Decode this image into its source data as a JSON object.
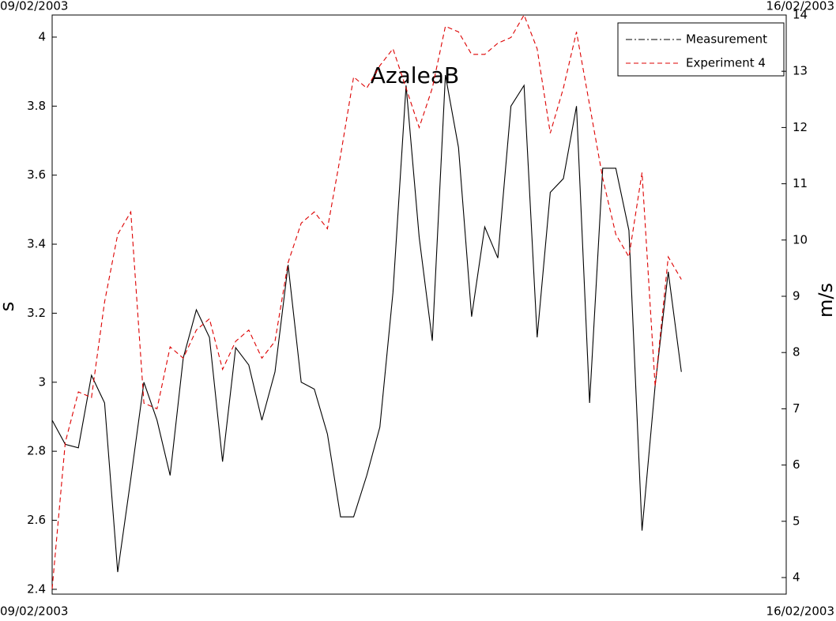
{
  "chart_data": {
    "type": "line",
    "title": "AzaleaB",
    "ylabel": "s",
    "y2label": "m/s",
    "x": [
      0,
      3,
      6,
      9,
      12,
      15,
      18,
      21,
      24,
      27,
      30,
      33,
      36,
      39,
      42,
      45,
      48,
      51,
      54,
      57,
      60,
      63,
      66,
      69,
      72,
      75,
      78,
      81,
      84,
      87,
      90,
      93,
      96,
      99,
      102,
      105,
      108,
      111,
      114,
      117,
      120,
      123,
      126,
      129,
      132,
      135,
      138,
      141,
      144
    ],
    "xlim": [
      0,
      168
    ],
    "xticks": [
      {
        "value": 0,
        "label": "09/02/2003"
      },
      {
        "value": 168,
        "label": "16/02/2003"
      }
    ],
    "ylim": [
      2.386,
      4.064
    ],
    "yticks": [
      2.4,
      2.6,
      2.8,
      3,
      3.2,
      3.4,
      3.6,
      3.8,
      4
    ],
    "y2lim": [
      3.705,
      14
    ],
    "y2ticks": [
      4,
      5,
      6,
      7,
      8,
      9,
      10,
      11,
      12,
      13,
      14
    ],
    "legend": "upper right",
    "series": [
      {
        "name": "Measurement",
        "color": "#000000",
        "style": "dashdot",
        "values": [
          2.89,
          2.82,
          2.81,
          3.02,
          2.94,
          2.45,
          2.72,
          3.0,
          2.89,
          2.73,
          3.07,
          3.21,
          3.13,
          2.77,
          3.1,
          3.05,
          2.89,
          3.03,
          3.34,
          3.0,
          2.98,
          2.85,
          2.61,
          2.61,
          2.73,
          2.87,
          3.26,
          3.86,
          3.42,
          3.12,
          3.89,
          3.68,
          3.19,
          3.45,
          3.36,
          3.8,
          3.86,
          3.13,
          3.55,
          3.59,
          3.8,
          2.94,
          3.62,
          3.62,
          3.44,
          2.57,
          2.99,
          3.32,
          3.03
        ]
      },
      {
        "name": "Experiment 4",
        "color": "#dd0000",
        "style": "dashed",
        "axis": "y2",
        "values": [
          3.8,
          6.4,
          7.3,
          7.2,
          8.9,
          10.1,
          10.5,
          7.1,
          7.0,
          8.1,
          7.9,
          8.4,
          8.6,
          7.7,
          8.2,
          8.4,
          7.9,
          8.2,
          9.6,
          10.3,
          10.5,
          10.2,
          11.5,
          12.9,
          12.7,
          13.1,
          13.4,
          12.7,
          12.0,
          12.7,
          13.8,
          13.7,
          13.3,
          13.3,
          13.5,
          13.6,
          14.0,
          13.4,
          11.9,
          12.7,
          13.7,
          12.4,
          11.1,
          10.1,
          9.7,
          11.2,
          7.4,
          9.7,
          9.3
        ]
      }
    ]
  }
}
